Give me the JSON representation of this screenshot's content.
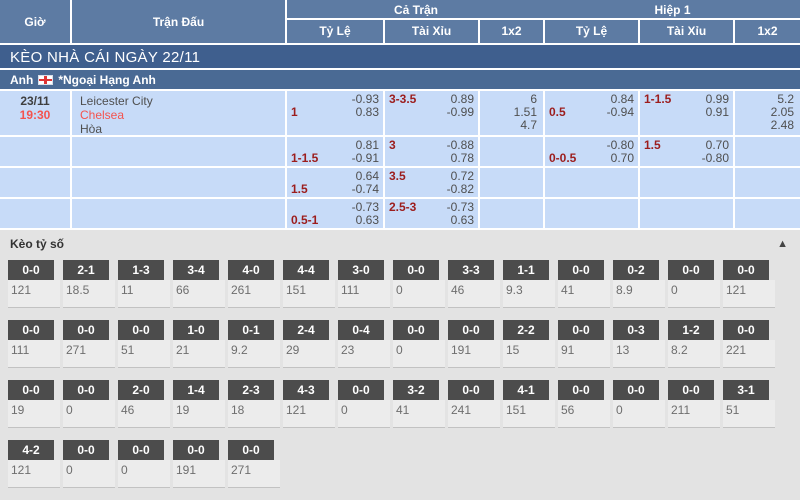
{
  "table": {
    "headers": {
      "time": "Giờ",
      "match": "Trận Đấu",
      "full_match": "Cả Trận",
      "first_half": "Hiệp 1",
      "odds": "Tỷ Lệ",
      "over_under": "Tài Xỉu",
      "one_x_two": "1x2"
    },
    "section_title": "KÈO NHÀ CÁI NGÀY 22/11",
    "league": {
      "country": "Anh",
      "flag_icon": "england-flag",
      "name": "*Ngoại Hạng Anh"
    },
    "match": {
      "date": "23/11",
      "time": "19:30",
      "home": "Leicester City",
      "away": "Chelsea",
      "draw": "Hòa",
      "rows": [
        {
          "ft_hdp": {
            "hdp": "1",
            "top": "-0.93",
            "bottom": "0.83"
          },
          "ft_ou": {
            "hdp": "3-3.5",
            "top": "0.89",
            "bottom": "-0.99"
          },
          "ft_1x2": [
            "6",
            "1.51",
            "4.7"
          ],
          "h1_hdp": {
            "hdp": "0.5",
            "top": "0.84",
            "bottom": "-0.94"
          },
          "h1_ou": {
            "hdp": "1-1.5",
            "top": "0.99",
            "bottom": "0.91"
          },
          "h1_1x2": [
            "5.2",
            "2.05",
            "2.48"
          ]
        },
        {
          "ft_hdp": {
            "hdp": "1-1.5",
            "top": "0.81",
            "bottom": "-0.91"
          },
          "ft_ou": {
            "hdp": "3",
            "top": "-0.88",
            "bottom": "0.78"
          },
          "ft_1x2": null,
          "h1_hdp": {
            "hdp": "0-0.5",
            "top": "-0.80",
            "bottom": "0.70"
          },
          "h1_ou": {
            "hdp": "1.5",
            "top": "0.70",
            "bottom": "-0.80"
          },
          "h1_1x2": null
        },
        {
          "ft_hdp": {
            "hdp": "1.5",
            "top": "0.64",
            "bottom": "-0.74"
          },
          "ft_ou": {
            "hdp": "3.5",
            "top": "0.72",
            "bottom": "-0.82"
          },
          "ft_1x2": null,
          "h1_hdp": null,
          "h1_ou": null,
          "h1_1x2": null
        },
        {
          "ft_hdp": {
            "hdp": "0.5-1",
            "top": "-0.73",
            "bottom": "0.63"
          },
          "ft_ou": {
            "hdp": "2.5-3",
            "top": "-0.73",
            "bottom": "0.63"
          },
          "ft_1x2": null,
          "h1_hdp": null,
          "h1_ou": null,
          "h1_1x2": null
        }
      ]
    }
  },
  "score_section": {
    "title": "Kèo tỷ số",
    "collapse_icon": "▲",
    "rows": [
      [
        {
          "score": "0-0",
          "odds": "121"
        },
        {
          "score": "2-1",
          "odds": "18.5"
        },
        {
          "score": "1-3",
          "odds": "11"
        },
        {
          "score": "3-4",
          "odds": "66"
        },
        {
          "score": "4-0",
          "odds": "261"
        },
        {
          "score": "4-4",
          "odds": "151"
        },
        {
          "score": "3-0",
          "odds": "111"
        },
        {
          "score": "0-0",
          "odds": "0"
        },
        {
          "score": "3-3",
          "odds": "46"
        },
        {
          "score": "1-1",
          "odds": "9.3"
        },
        {
          "score": "0-0",
          "odds": "41"
        },
        {
          "score": "0-2",
          "odds": "8.9"
        },
        {
          "score": "0-0",
          "odds": "0"
        },
        {
          "score": "0-0",
          "odds": "121"
        }
      ],
      [
        {
          "score": "0-0",
          "odds": "111"
        },
        {
          "score": "0-0",
          "odds": "271"
        },
        {
          "score": "0-0",
          "odds": "51"
        },
        {
          "score": "1-0",
          "odds": "21"
        },
        {
          "score": "0-1",
          "odds": "9.2"
        },
        {
          "score": "2-4",
          "odds": "29"
        },
        {
          "score": "0-4",
          "odds": "23"
        },
        {
          "score": "0-0",
          "odds": "0"
        },
        {
          "score": "0-0",
          "odds": "191"
        },
        {
          "score": "2-2",
          "odds": "15"
        },
        {
          "score": "0-0",
          "odds": "91"
        },
        {
          "score": "0-3",
          "odds": "13"
        },
        {
          "score": "1-2",
          "odds": "8.2"
        },
        {
          "score": "0-0",
          "odds": "221"
        }
      ],
      [
        {
          "score": "0-0",
          "odds": "19"
        },
        {
          "score": "0-0",
          "odds": "0"
        },
        {
          "score": "2-0",
          "odds": "46"
        },
        {
          "score": "1-4",
          "odds": "19"
        },
        {
          "score": "2-3",
          "odds": "18"
        },
        {
          "score": "4-3",
          "odds": "121"
        },
        {
          "score": "0-0",
          "odds": "0"
        },
        {
          "score": "3-2",
          "odds": "41"
        },
        {
          "score": "0-0",
          "odds": "241"
        },
        {
          "score": "4-1",
          "odds": "151"
        },
        {
          "score": "0-0",
          "odds": "56"
        },
        {
          "score": "0-0",
          "odds": "0"
        },
        {
          "score": "0-0",
          "odds": "211"
        },
        {
          "score": "3-1",
          "odds": "51"
        }
      ],
      [
        {
          "score": "4-2",
          "odds": "121"
        },
        {
          "score": "0-0",
          "odds": "0"
        },
        {
          "score": "0-0",
          "odds": "0"
        },
        {
          "score": "0-0",
          "odds": "191"
        },
        {
          "score": "0-0",
          "odds": "271"
        }
      ]
    ]
  },
  "colors": {
    "header_blue": "#5d7ba3",
    "banner_blue": "#3f5f8e",
    "league_blue": "#4a6a94",
    "row_light_blue": "#c7dbf8",
    "accent_red": "#f4534e",
    "handicap_maroon": "#9c1d1d",
    "score_box_dark": "#4c4c4c",
    "section_gray": "#e3e3e3"
  }
}
